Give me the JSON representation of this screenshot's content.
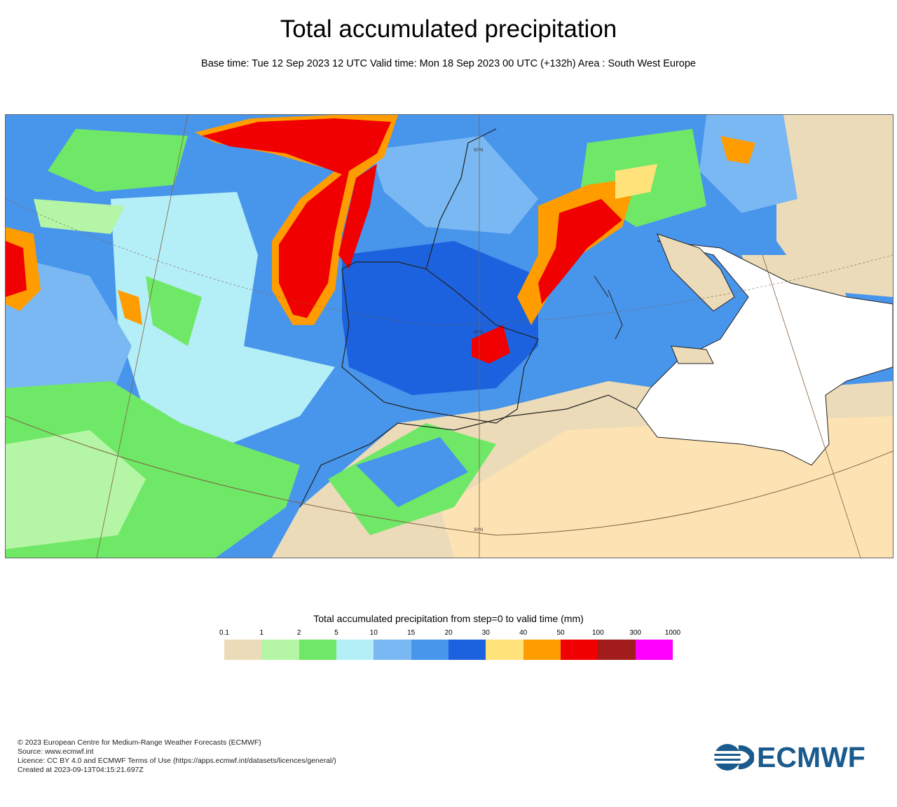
{
  "title": "Total accumulated precipitation",
  "subtitle": "Base time: Tue 12 Sep 2023 12 UTC Valid time: Mon 18 Sep 2023 00 UTC (+132h) Area : South West Europe",
  "map": {
    "lat_labels": [
      "50°N",
      "40°N",
      "30°N"
    ],
    "colors": {
      "sea_background": "#a8d8f0",
      "land_dry": "#fde3b3",
      "mediterranean_no_data": "#ffffff"
    }
  },
  "legend": {
    "title": "Total accumulated precipitation from step=0 to valid time (mm)",
    "ticks": [
      "0.1",
      "1",
      "2",
      "5",
      "10",
      "15",
      "20",
      "30",
      "40",
      "50",
      "100",
      "300",
      "1000"
    ],
    "colors": [
      "#ebdbb8",
      "#b4f5a6",
      "#6fe867",
      "#b4eef6",
      "#79b8f2",
      "#4895ec",
      "#1c62de",
      "#ffe37a",
      "#ff9c00",
      "#f00000",
      "#a21c1c",
      "#ff00ff"
    ]
  },
  "footer": {
    "line1": "© 2023 European Centre for Medium-Range Weather Forecasts (ECMWF)",
    "line2": "Source: www.ecmwf.int",
    "line3": "Licence: CC BY 4.0 and ECMWF Terms of Use (https://apps.ecmwf.int/datasets/licences/general/)",
    "line4": "Created at 2023-09-13T04:15:21.697Z"
  },
  "logo": {
    "text": "ECMWF",
    "color": "#1a5a8c"
  }
}
